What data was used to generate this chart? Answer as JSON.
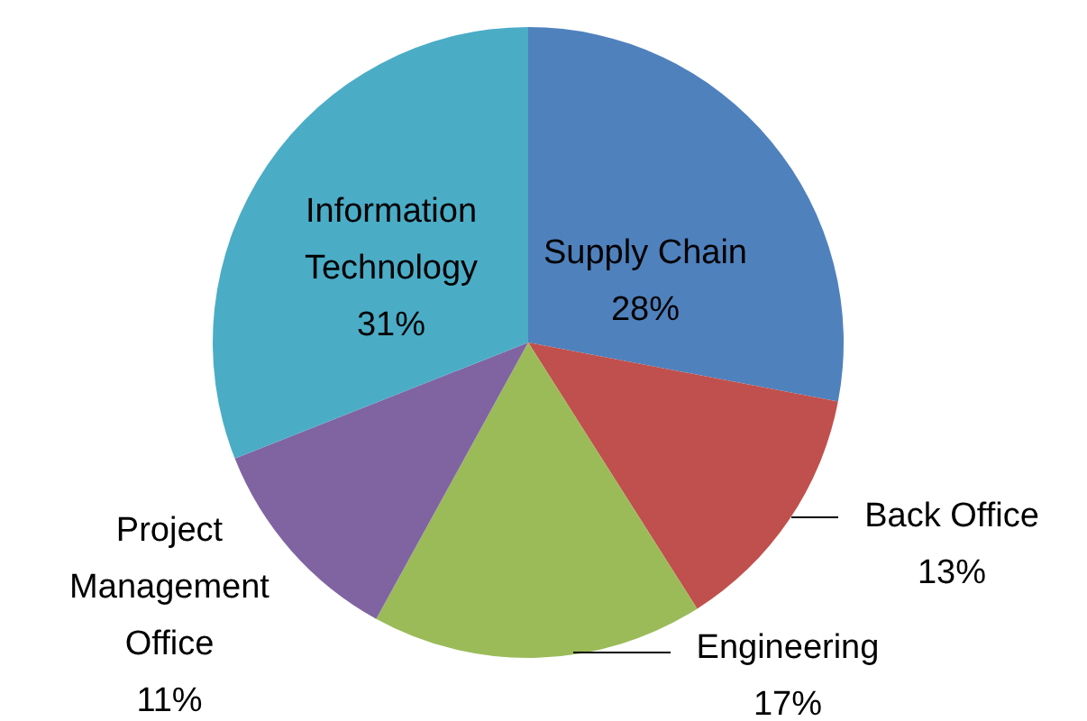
{
  "chart_data": {
    "type": "pie",
    "categories": [
      "Supply Chain",
      "Back Office",
      "Engineering",
      "Project Management Office",
      "Information Technology"
    ],
    "values": [
      28,
      13,
      17,
      11,
      31
    ],
    "value_labels": [
      "28%",
      "13%",
      "17%",
      "11%",
      "31%"
    ],
    "colors": [
      "#4f81bd",
      "#c0504d",
      "#9bbb59",
      "#8064a2",
      "#4bacc6"
    ]
  }
}
